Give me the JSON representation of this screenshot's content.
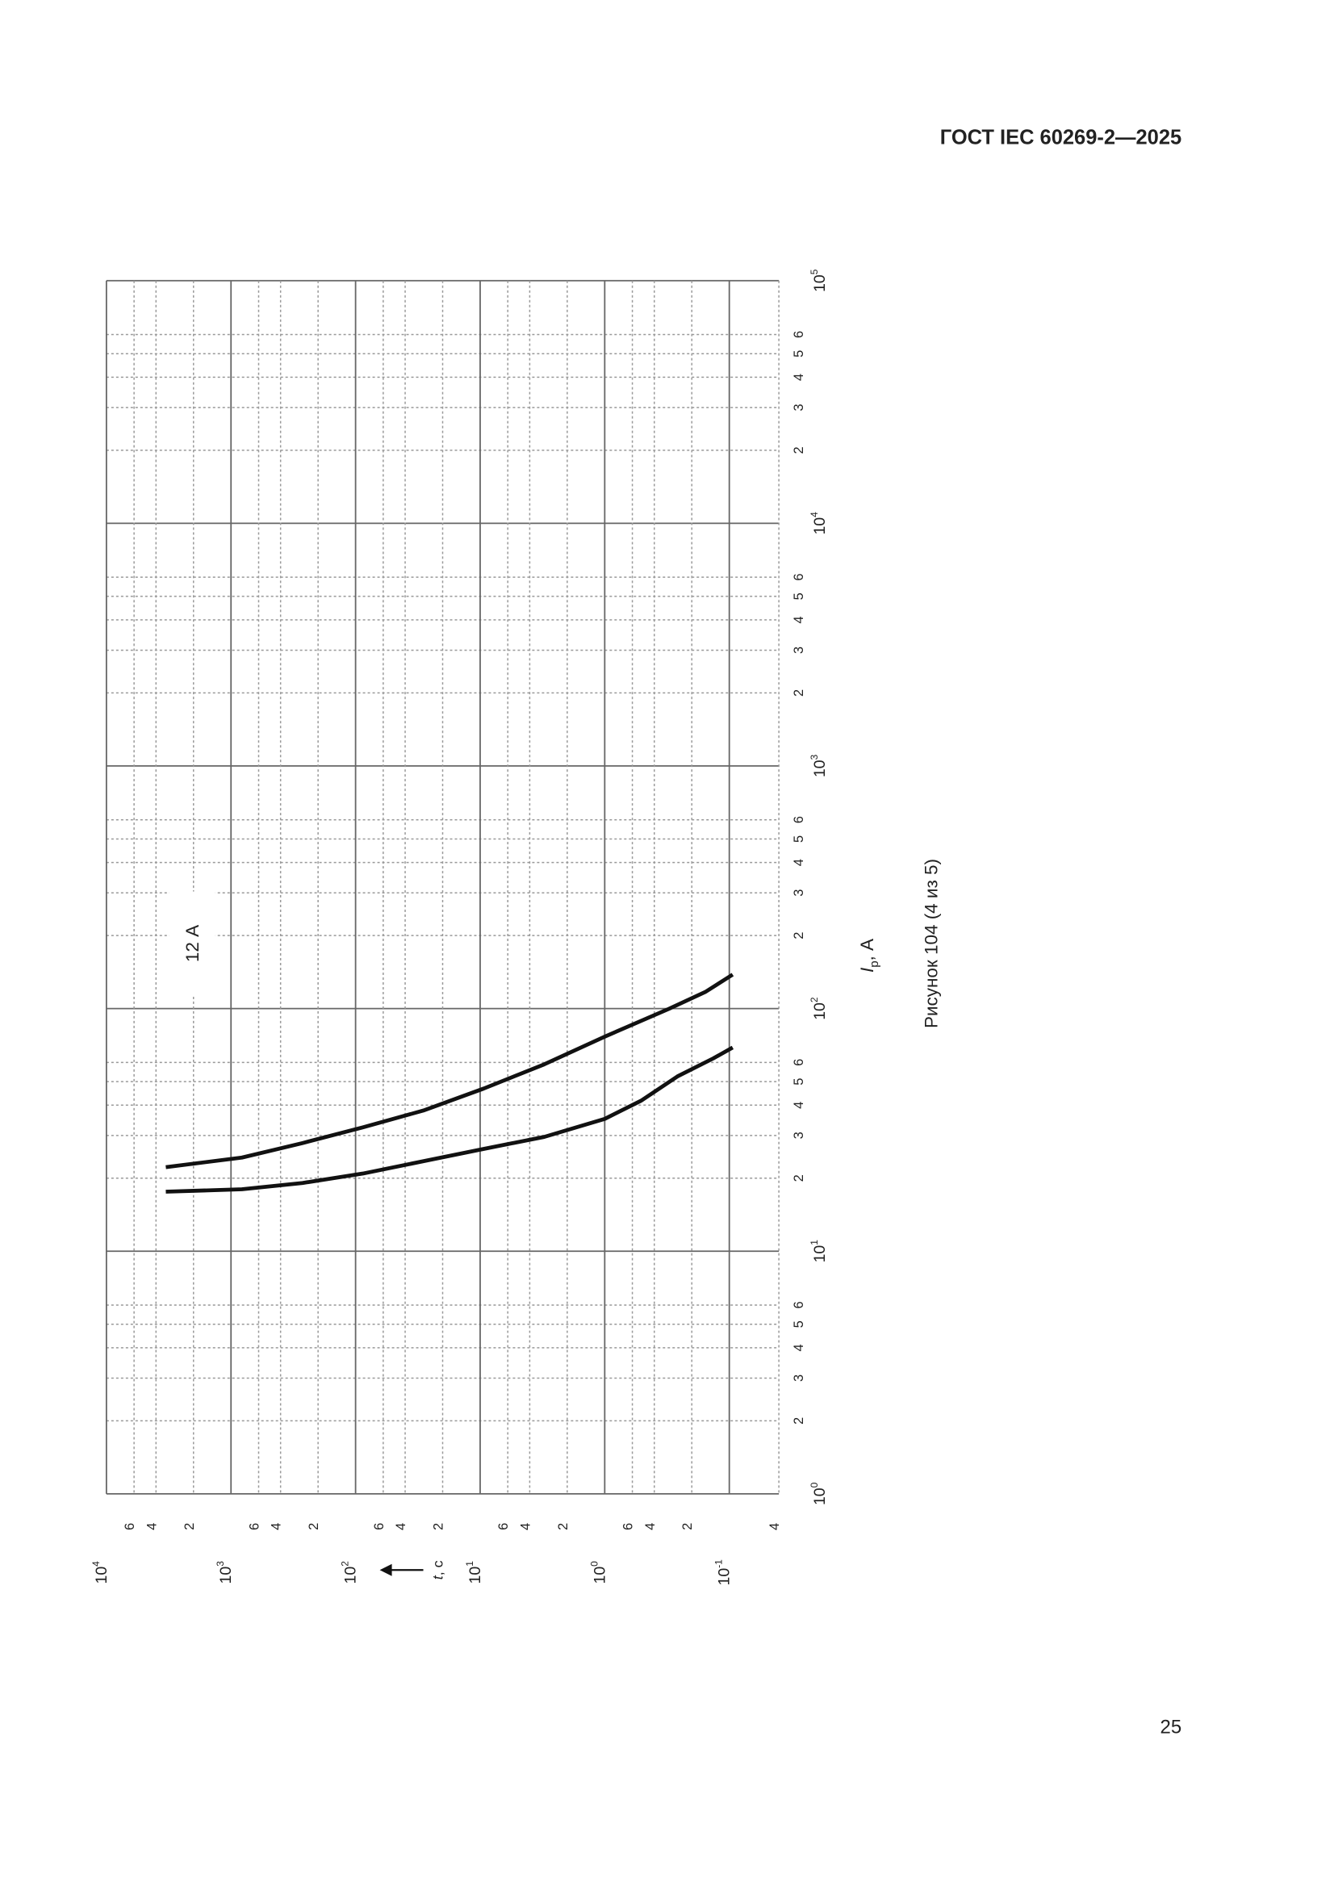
{
  "header": {
    "title": "ГОСТ IEC 60269-2—2025"
  },
  "page_number": "25",
  "caption": "Рисунок 104 (4 из 5)",
  "chart_data": {
    "type": "line",
    "annotation": "12 А",
    "x_label": {
      "symbol": "I",
      "sub": "р",
      "unit": ", А"
    },
    "y_label": {
      "symbol": "t",
      "unit": ", с"
    },
    "xscale": "log",
    "yscale": "log",
    "grid": true,
    "xlim": [
      1,
      100000
    ],
    "ylim": [
      0.04,
      10000
    ],
    "xticks": [
      {
        "value": 1,
        "label": "10",
        "sup": "0"
      },
      2,
      3,
      4,
      5,
      6,
      {
        "value": 10,
        "label": "10",
        "sup": "1"
      },
      {
        "value": 20,
        "label": "2"
      },
      {
        "value": 30,
        "label": "3"
      },
      {
        "value": 40,
        "label": "4"
      },
      {
        "value": 50,
        "label": "5"
      },
      {
        "value": 60,
        "label": "6"
      },
      {
        "value": 100,
        "label": "10",
        "sup": "2"
      },
      {
        "value": 200,
        "label": "2"
      },
      {
        "value": 300,
        "label": "3"
      },
      {
        "value": 400,
        "label": "4"
      },
      {
        "value": 500,
        "label": "5"
      },
      {
        "value": 600,
        "label": "6"
      },
      {
        "value": 1000,
        "label": "10",
        "sup": "3"
      },
      {
        "value": 2000,
        "label": "2"
      },
      {
        "value": 3000,
        "label": "3"
      },
      {
        "value": 4000,
        "label": "4"
      },
      {
        "value": 5000,
        "label": "5"
      },
      {
        "value": 6000,
        "label": "6"
      },
      {
        "value": 10000,
        "label": "10",
        "sup": "4"
      },
      {
        "value": 20000,
        "label": "2"
      },
      {
        "value": 30000,
        "label": "3"
      },
      {
        "value": 40000,
        "label": "4"
      },
      {
        "value": 50000,
        "label": "5"
      },
      {
        "value": 60000,
        "label": "6"
      },
      {
        "value": 100000,
        "label": "10",
        "sup": "5"
      }
    ],
    "yticks": [
      {
        "value": 10000,
        "label": "10",
        "sup": "4"
      },
      {
        "value": 6000,
        "label": "6"
      },
      {
        "value": 4000,
        "label": "4"
      },
      {
        "value": 2000,
        "label": "2"
      },
      {
        "value": 1000,
        "label": "10",
        "sup": "3"
      },
      {
        "value": 600,
        "label": "6"
      },
      {
        "value": 400,
        "label": "4"
      },
      {
        "value": 200,
        "label": "2"
      },
      {
        "value": 100,
        "label": "10",
        "sup": "2"
      },
      {
        "value": 60,
        "label": "6"
      },
      {
        "value": 40,
        "label": "4"
      },
      {
        "value": 20,
        "label": "2"
      },
      {
        "value": 10,
        "label": "10",
        "sup": "1"
      },
      6,
      4,
      2,
      {
        "value": 1,
        "label": "10",
        "sup": "0"
      },
      {
        "value": 0.6,
        "label": "6"
      },
      {
        "value": 0.4,
        "label": "4"
      },
      {
        "value": 0.2,
        "label": "2"
      },
      {
        "value": 0.1,
        "label": "10",
        "sup": "-1"
      },
      {
        "value": 0.04,
        "label": "4"
      }
    ],
    "series": [
      {
        "color": "#111111",
        "x": [
          22.2,
          24.3,
          27.9,
          32.4,
          38.0,
          46.8,
          58.9,
          76.6,
          99.8,
          117,
          138
        ],
        "values": [
          3340,
          818,
          267,
          87.5,
          28.6,
          9.35,
          3.06,
          1.0,
          0.305,
          0.156,
          0.094
        ]
      },
      {
        "color": "#111111",
        "x": [
          17.6,
          18.0,
          19.1,
          20.9,
          23.5,
          26.4,
          29.6,
          35.1,
          41.7,
          52.5,
          62.4,
          69.1
        ],
        "values": [
          3340,
          818,
          267,
          87.5,
          28.6,
          9.35,
          3.06,
          1.0,
          0.512,
          0.261,
          0.134,
          0.094
        ]
      }
    ]
  }
}
